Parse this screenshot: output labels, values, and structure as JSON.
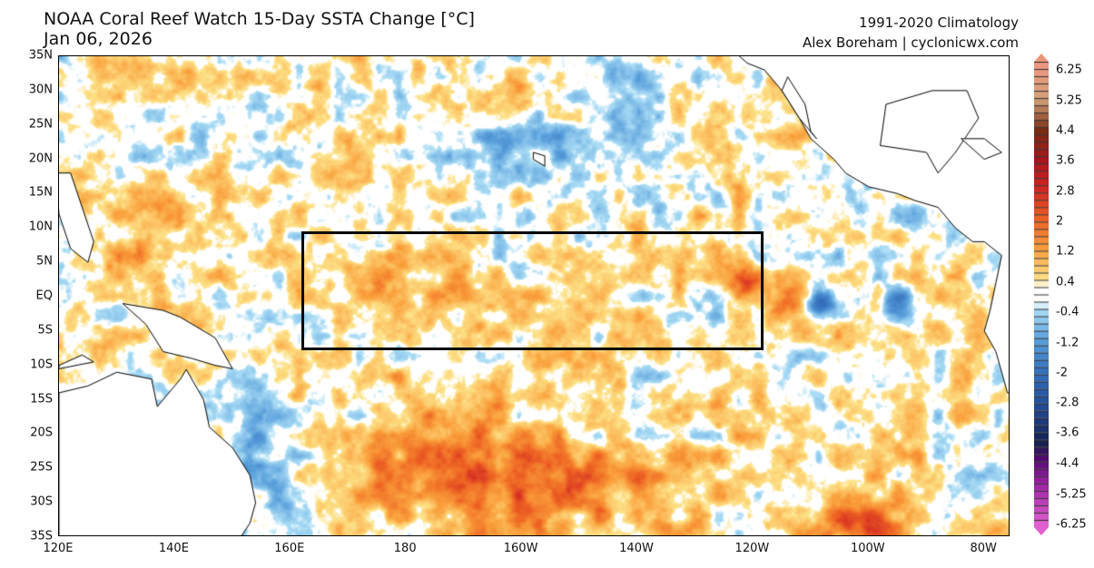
{
  "header": {
    "title": "NOAA Coral Reef Watch 15-Day SSTA Change [°C]",
    "date": "Jan 06, 2026",
    "climatology": "1991-2020 Climatology",
    "credit": "Alex Boreham | cyclonicwx.com"
  },
  "map": {
    "variable": "15-day SST anomaly change",
    "units": "°C",
    "lat_labels": [
      "35N",
      "30N",
      "25N",
      "20N",
      "15N",
      "10N",
      "5N",
      "EQ",
      "5S",
      "10S",
      "15S",
      "20S",
      "25S",
      "30S",
      "35S"
    ],
    "lon_labels": [
      "120E",
      "140E",
      "160E",
      "180",
      "160W",
      "140W",
      "120W",
      "100W",
      "80W"
    ],
    "highlight_box": {
      "lon_range": [
        "162E",
        "117W"
      ],
      "lat_range": [
        "8S",
        "9N"
      ]
    }
  },
  "colorbar": {
    "labels": [
      "6.25",
      "5.25",
      "4.4",
      "3.6",
      "2.8",
      "2",
      "1.2",
      "0.4",
      "-0.4",
      "-1.2",
      "-2",
      "-2.8",
      "-3.6",
      "-4.4",
      "-5.25",
      "-6.25"
    ],
    "range": [
      -6.25,
      6.25
    ],
    "colors": {
      "max": "#e8967a",
      "warm": "#f07f2a",
      "light_warm": "#fde08a",
      "neutral": "#ffffff",
      "light_cool": "#a8d8f0",
      "cool": "#3a78c0",
      "deep_cool": "#16245a",
      "min": "#e060d0"
    }
  }
}
